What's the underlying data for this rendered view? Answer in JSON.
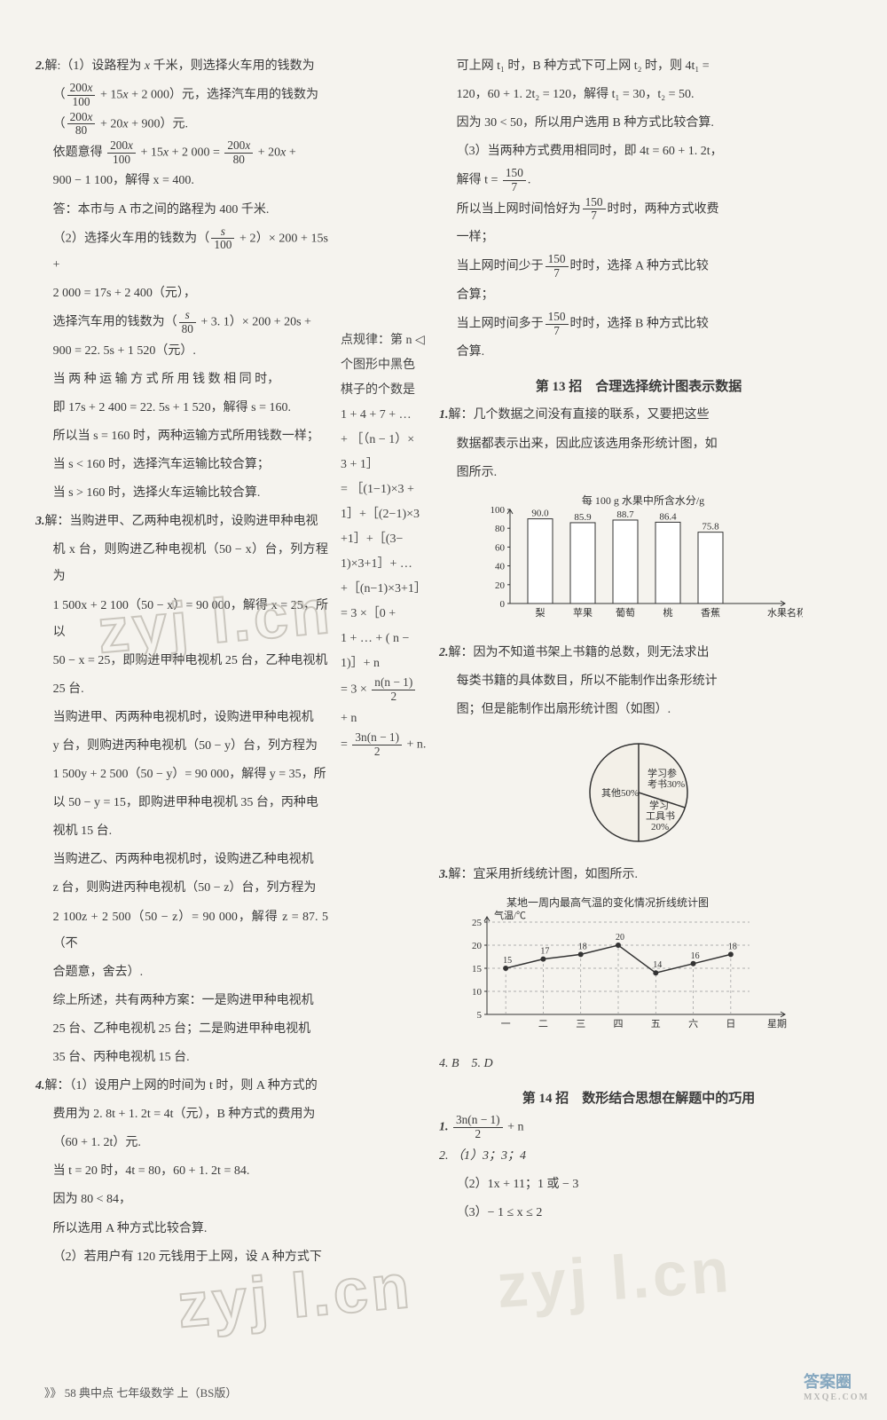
{
  "left": {
    "q2": {
      "l1_a": "2.",
      "l1_b": "解:（1）设路程为 ",
      "l2": "元，选择汽车用的钱数为",
      "l3": "元.",
      "l4": "依题意得",
      "l5": "900 − 1 100，解得 x = 400.",
      "l6": "答：本市与 A 市之间的路程为 400 千米.",
      "l7_a": "（2）选择火车用的钱数为",
      "l7_b": "× 200 + 15s +",
      "l8": "2 000 = 17s + 2 400（元），",
      "l9_a": "选择汽车用的钱数为",
      "l9_b": "× 200 + 20s +",
      "l10": "900 = 22. 5s + 1 520（元）.",
      "l11": "当 两 种 运 输 方 式 所 用 钱 数 相 同 时，",
      "l12": "即 17s + 2 400 = 22. 5s + 1 520，解得 s = 160.",
      "l13": "所以当 s = 160 时，两种运输方式所用钱数一样；",
      "l14": "当 s < 160 时，选择汽车运输比较合算；",
      "l15": "当 s > 160 时，选择火车运输比较合算."
    },
    "q3": {
      "l1_a": "3.",
      "l1_b": "解：当购进甲、乙两种电视机时，设购进甲种电视",
      "l2": "机 x 台，则购进乙种电视机（50 − x）台，列方程为",
      "l3": "1 500x + 2 100（50 − x）= 90 000，解得 x = 25，所以",
      "l4": "50 − x = 25，即购进甲种电视机 25 台，乙种电视机",
      "l5": "25 台.",
      "l6": "当购进甲、丙两种电视机时，设购进甲种电视机",
      "l7": "y 台，则购进丙种电视机（50 − y）台，列方程为",
      "l8": "1 500y + 2 500（50 − y）= 90 000，解得 y = 35，所",
      "l9": "以 50 − y = 15，即购进甲种电视机 35 台，丙种电",
      "l10": "视机 15 台.",
      "l11": "当购进乙、丙两种电视机时，设购进乙种电视机",
      "l12": "z 台，则购进丙种电视机（50 − z）台，列方程为",
      "l13": "2 100z + 2 500（50 − z）= 90 000，解得 z = 87. 5（不",
      "l14": "合题意，舍去）.",
      "l15": "综上所述，共有两种方案：一是购进甲种电视机",
      "l16": "25 台、乙种电视机 25 台；二是购进甲种电视机",
      "l17": "35 台、丙种电视机 15 台."
    },
    "q4": {
      "l1_a": "4.",
      "l1_b": "解：（1）设用户上网的时间为 t 时，则 A 种方式的",
      "l2": "费用为 2. 8t + 1. 2t = 4t（元），B 种方式的费用为",
      "l3": "（60 + 1. 2t）元.",
      "l4": "当 t = 20 时，4t = 80，60 + 1. 2t = 84.",
      "l5": "因为 80 < 84，",
      "l6": "所以选用 A 种方式比较合算.",
      "l7": "（2）若用户有 120 元钱用于上网，设 A 种方式下"
    }
  },
  "mid": {
    "title": "点规律：第 n ◁",
    "l2": "个图形中黑色",
    "l3": "棋子的个数是",
    "l4": "1 + 4 + 7 + …",
    "l5": "+ ［（n − 1）×",
    "l6": "3 + 1］",
    "l7": "= ［(1−1)×3 +",
    "l8": "1］+［(2−1)×3",
    "l9": "+1］+［(3−",
    "l10": "1)×3+1］+ …",
    "l11": "+［(n−1)×3+1］",
    "l12": "= 3 ×［0 +",
    "l13": "1 + … + ( n −",
    "l14": "1)］+ n",
    "l15_a": "= 3 ×",
    "l16_a": "=",
    "l16_b": " + n."
  },
  "right": {
    "cont": {
      "l1": "可上网 t₁ 时，B 种方式下可上网 t₂ 时，则 4t₁ =",
      "l2": "120，60 + 1. 2t₂ = 120，解得 t₁ = 30，t₂ = 50.",
      "l3": "因为 30 < 50，所以用户选用 B 种方式比较合算.",
      "l4": "（3）当两种方式费用相同时，即 4t = 60 + 1. 2t，",
      "l5_a": "解得 t =",
      "l6_a": "所以当上网时间恰好为",
      "l6_b": "时时，两种方式收费",
      "l7": "一样；",
      "l8_a": "当上网时间少于",
      "l8_b": "时时，选择 A 种方式比较",
      "l9": "合算；",
      "l10_a": "当上网时间多于",
      "l10_b": "时时，选择 B 种方式比较",
      "l11": "合算."
    },
    "sec13": {
      "title": "第 13 招　合理选择统计图表示数据",
      "q1_a": "1.",
      "q1_b": "解：几个数据之间没有直接的联系，又要把这些",
      "q1_c": "数据都表示出来，因此应该选用条形统计图，如",
      "q1_d": "图所示.",
      "q2_a": "2.",
      "q2_b": "解：因为不知道书架上书籍的总数，则无法求出",
      "q2_c": "每类书籍的具体数目，所以不能制作出条形统计",
      "q2_d": "图；但是能制作出扇形统计图（如图）.",
      "q3_a": "3.",
      "q3_b": "解：宜采用折线统计图，如图所示.",
      "q45": "4. B　5. D"
    },
    "sec14": {
      "title": "第 14 招　数形结合思想在解题中的巧用",
      "q1_a": "1.",
      "q1_b": " + n",
      "q2_a": "2. （1）3；3；4",
      "q2_b": "（2）1x + 11；1 或 − 3",
      "q2_c": "（3）− 1 ≤ x ≤ 2"
    }
  },
  "bar_chart": {
    "title": "每 100 g 水果中所含水分/g",
    "y_ticks": [
      100,
      80,
      60,
      40,
      20,
      0
    ],
    "categories": [
      "梨",
      "苹果",
      "葡萄",
      "桃",
      "香蕉"
    ],
    "values": [
      90.0,
      85.9,
      88.7,
      86.4,
      75.8
    ],
    "x_axis_label": "水果名称",
    "axis_color": "#333",
    "bar_fill": "#ffffff",
    "bar_stroke": "#333"
  },
  "pie_chart": {
    "slices": [
      {
        "label": "其他50%",
        "pct": 50,
        "start": 90,
        "end": 270,
        "color": "#f0ede4"
      },
      {
        "label": "学习参\n考书30%",
        "pct": 30,
        "start": 270,
        "end": 378,
        "color": "#f0ede4"
      },
      {
        "label": "学习\n工具书\n20%",
        "pct": 20,
        "start": 18,
        "end": 90,
        "color": "#f0ede4"
      }
    ],
    "stroke": "#333"
  },
  "line_chart": {
    "title": "某地一周内最高气温的变化情况折线统计图",
    "y_label": "气温/℃",
    "y_ticks": [
      25,
      20,
      15,
      10,
      5
    ],
    "x_ticks": [
      "一",
      "二",
      "三",
      "四",
      "五",
      "六",
      "日"
    ],
    "x_axis_label": "星期",
    "values": [
      15,
      17,
      18,
      20,
      14,
      16,
      18
    ],
    "line_color": "#333",
    "point_fill": "#333"
  },
  "footer": "》》 58 典中点 七年级数学 上（BS版）",
  "corner": {
    "main": "答案圈",
    "sub": "MXQE.COM"
  }
}
